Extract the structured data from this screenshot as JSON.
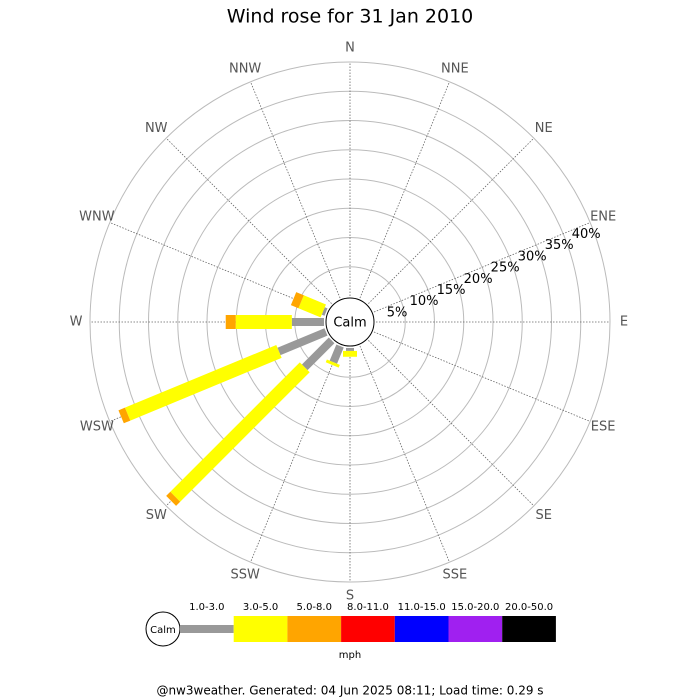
{
  "chart_data": {
    "type": "windrose",
    "title": "Wind rose for 31 Jan 2010",
    "categories": [
      "N",
      "NNE",
      "NE",
      "ENE",
      "E",
      "ESE",
      "SE",
      "SSE",
      "S",
      "SSW",
      "SW",
      "WSW",
      "W",
      "WNW",
      "NW",
      "NNW"
    ],
    "series": [
      {
        "name": "1.0-3.0",
        "color": "#999999",
        "values": [
          0,
          0,
          0,
          0,
          0,
          0,
          0,
          0,
          0.5,
          3,
          6.5,
          8.7,
          5.5,
          0.5,
          0,
          0
        ]
      },
      {
        "name": "3.0-5.0",
        "color": "#ffff00",
        "values": [
          0,
          0,
          0,
          0,
          0,
          0,
          0,
          0,
          1,
          0.5,
          31.3,
          28,
          9.6,
          4.1,
          0,
          0
        ]
      },
      {
        "name": "5.0-8.0",
        "color": "#ffa500",
        "values": [
          0,
          0,
          0,
          0,
          0,
          0,
          0,
          0,
          0,
          0,
          1,
          1.2,
          1.7,
          1.4,
          0,
          0
        ]
      },
      {
        "name": "8.0-11.0",
        "color": "#ff0000",
        "values": [
          0,
          0,
          0,
          0,
          0,
          0,
          0,
          0,
          0,
          0,
          0,
          0,
          0,
          0,
          0,
          0
        ]
      },
      {
        "name": "11.0-15.0",
        "color": "#0000ff",
        "values": [
          0,
          0,
          0,
          0,
          0,
          0,
          0,
          0,
          0,
          0,
          0,
          0,
          0,
          0,
          0,
          0
        ]
      },
      {
        "name": "15.0-20.0",
        "color": "#a020f0",
        "values": [
          0,
          0,
          0,
          0,
          0,
          0,
          0,
          0,
          0,
          0,
          0,
          0,
          0,
          0,
          0,
          0
        ]
      },
      {
        "name": "20.0-50.0",
        "color": "#000000",
        "values": [
          0,
          0,
          0,
          0,
          0,
          0,
          0,
          0,
          0,
          0,
          0,
          0,
          0,
          0,
          0,
          0
        ]
      }
    ],
    "ylim": [
      0,
      40
    ],
    "yticks": [
      {
        "value": 5,
        "label": "5%"
      },
      {
        "value": 10,
        "label": "10%"
      },
      {
        "value": 15,
        "label": "15%"
      },
      {
        "value": 20,
        "label": "20%"
      },
      {
        "value": 25,
        "label": "25%"
      },
      {
        "value": 30,
        "label": "30%"
      },
      {
        "value": 35,
        "label": "35%"
      },
      {
        "value": 40,
        "label": "40%"
      }
    ],
    "calm_label": "Calm",
    "units": "mph",
    "footer": "@nw3weather. Generated: 04 Jun 2025 08:11; Load time: 0.29 s"
  }
}
